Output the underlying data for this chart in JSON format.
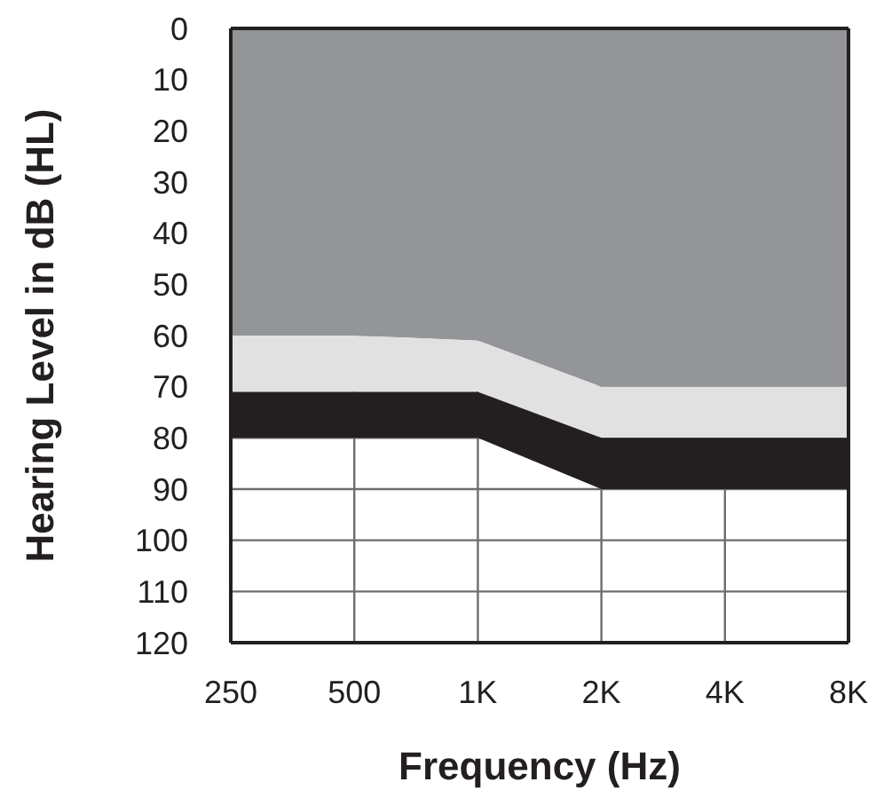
{
  "chart_data": {
    "type": "area",
    "stacked": true,
    "xlabel": "Frequency (Hz)",
    "ylabel": "Hearing Level in dB (HL)",
    "categories": [
      "250",
      "500",
      "1K",
      "2K",
      "4K",
      "8K"
    ],
    "series": [
      {
        "color": "#939598",
        "values": [
          60,
          60,
          61,
          70,
          70,
          70
        ]
      },
      {
        "color": "#e1e1e2",
        "values": [
          11,
          11,
          10,
          10,
          10,
          10
        ]
      },
      {
        "color": "#231f20",
        "values": [
          9,
          9,
          9,
          10,
          10,
          10
        ]
      }
    ],
    "ylim": [
      120,
      0
    ],
    "yticks": [
      0,
      10,
      20,
      30,
      40,
      50,
      60,
      70,
      80,
      90,
      100,
      110,
      120
    ],
    "grid": true
  }
}
